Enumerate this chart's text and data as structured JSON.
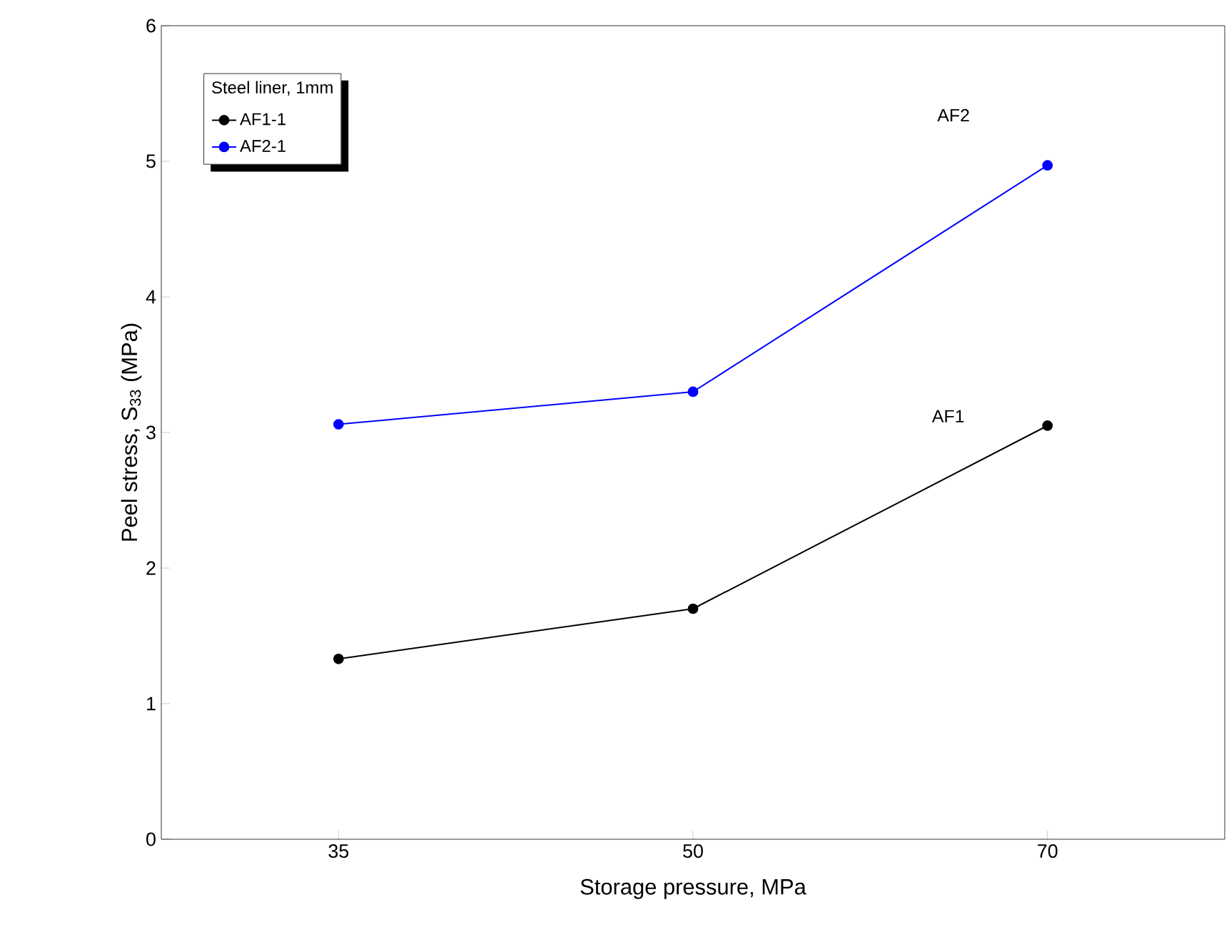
{
  "chart_data": {
    "type": "line",
    "xlabel": "Storage pressure, MPa",
    "ylabel": "Peel stress, S$_{33}$ (MPa)",
    "categories": [
      "35",
      "50",
      "70"
    ],
    "ylim": [
      0,
      6
    ],
    "yticks": [
      0,
      1,
      2,
      3,
      4,
      5,
      6
    ],
    "legend_title": "Steel liner, 1mm",
    "legend": "top left",
    "marker": "circle",
    "line_style": "solid",
    "grid": false,
    "series": [
      {
        "name": "AF1-1",
        "color": "#000000",
        "values": [
          1.33,
          1.7,
          3.05
        ]
      },
      {
        "name": "AF2-1",
        "color": "#0000ff",
        "values": [
          3.06,
          3.3,
          4.97
        ]
      }
    ],
    "annotations": [
      "AF2",
      "AF1"
    ]
  }
}
